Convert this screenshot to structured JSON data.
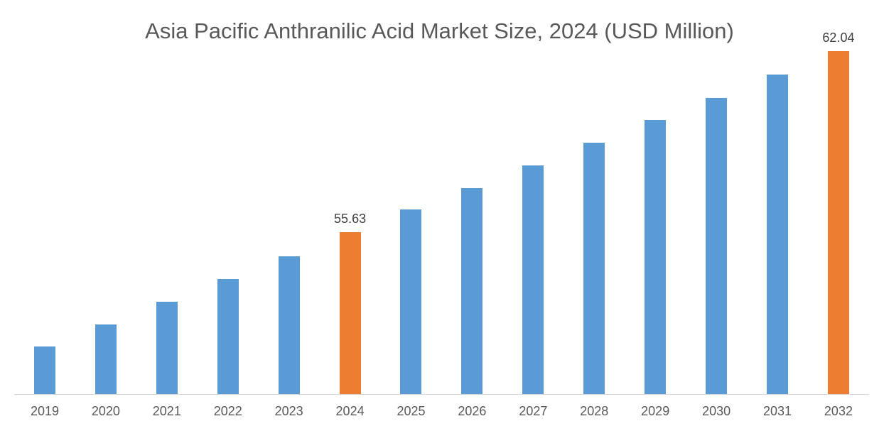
{
  "title": "Asia Pacific Anthranilic Acid Market Size, 2024 (USD Million)",
  "chart_data": {
    "type": "bar",
    "title": "Asia Pacific Anthranilic Acid Market Size, 2024 (USD Million)",
    "xlabel": "",
    "ylabel": "",
    "categories": [
      "2019",
      "2020",
      "2021",
      "2022",
      "2023",
      "2024",
      "2025",
      "2026",
      "2027",
      "2028",
      "2029",
      "2030",
      "2031",
      "2032"
    ],
    "values": [
      51.58,
      52.36,
      53.17,
      53.97,
      54.77,
      55.63,
      56.43,
      57.19,
      57.99,
      58.8,
      59.6,
      60.38,
      61.23,
      62.04
    ],
    "labeled_points": [
      {
        "category": "2024",
        "label": "55.63"
      },
      {
        "category": "2032",
        "label": "62.04"
      }
    ],
    "highlighted_categories": [
      "2024",
      "2032"
    ],
    "bar_color": "#5b9bd5",
    "highlight_color": "#ed7d31",
    "axis_line_color": "#d6d6d6",
    "ylim": [
      49.9,
      62.35
    ],
    "grid": false,
    "legend": false
  }
}
